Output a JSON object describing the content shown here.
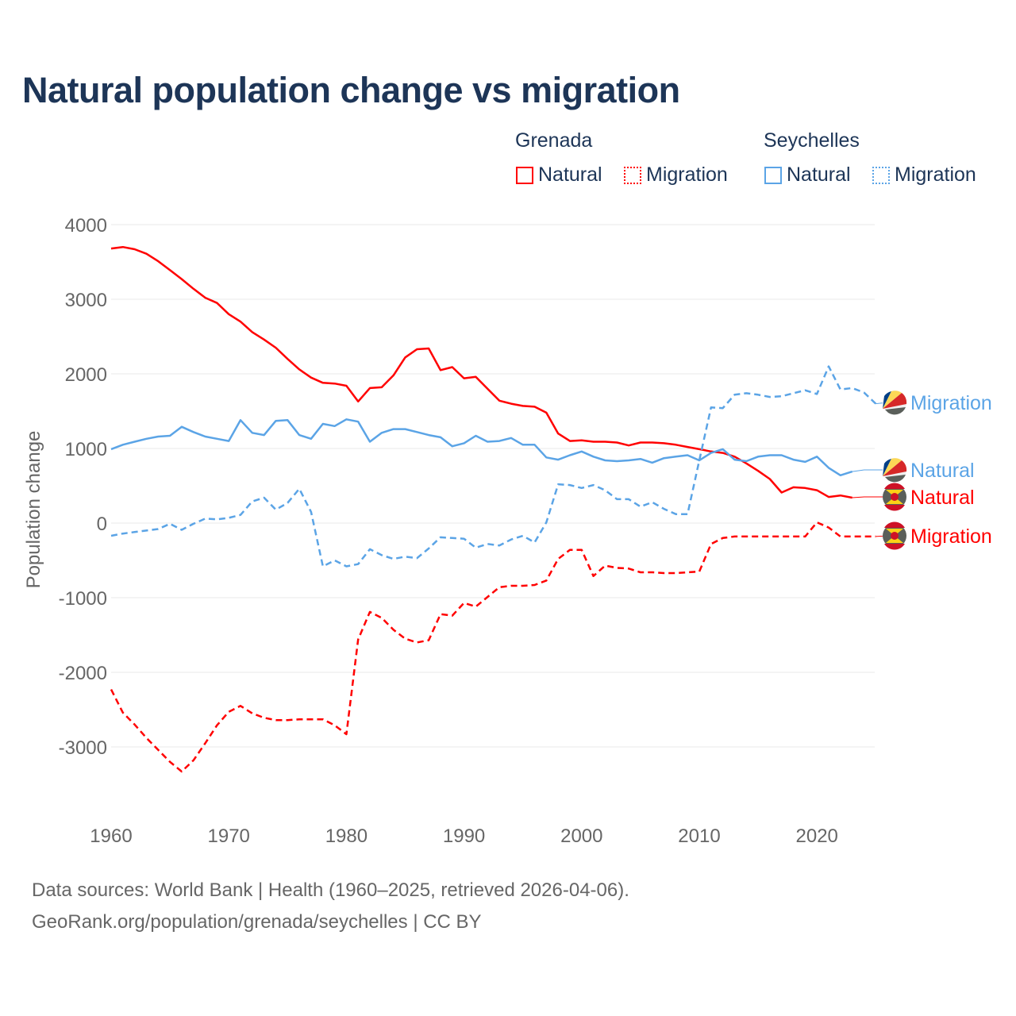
{
  "title": "Natural population change vs migration",
  "legend": {
    "groups": [
      {
        "name": "Grenada",
        "items": [
          {
            "label": "Natural",
            "style": "solid"
          },
          {
            "label": "Migration",
            "style": "dotted"
          }
        ],
        "color": "#ff0000"
      },
      {
        "name": "Seychelles",
        "items": [
          {
            "label": "Natural",
            "style": "solid"
          },
          {
            "label": "Migration",
            "style": "dotted"
          }
        ],
        "color": "#5ba4e6"
      }
    ]
  },
  "footer": {
    "line1": "Data sources: World Bank | Health (1960–2025, retrieved 2026-04-06).",
    "line2": "GeoRank.org/population/grenada/seychelles | CC BY"
  },
  "chart_data": {
    "type": "line",
    "title": "Natural population change vs migration",
    "xlabel": "",
    "ylabel": "Population change",
    "xlim": [
      1960,
      2025
    ],
    "ylim": [
      -4000,
      4000
    ],
    "xticks": [
      1960,
      1970,
      1980,
      1990,
      2000,
      2010,
      2020
    ],
    "yticks": [
      4000,
      3000,
      2000,
      1000,
      0,
      -1000,
      -2000,
      -3000
    ],
    "grid": true,
    "legend_position": "top-right",
    "x_start": 1960,
    "series": [
      {
        "name": "Grenada Natural",
        "end_label": "Natural",
        "color": "#ff0000",
        "dash": "solid",
        "values": [
          3680,
          3700,
          3670,
          3610,
          3510,
          3390,
          3270,
          3140,
          3020,
          2950,
          2800,
          2700,
          2560,
          2460,
          2350,
          2200,
          2060,
          1950,
          1880,
          1870,
          1840,
          1630,
          1810,
          1820,
          1980,
          2220,
          2330,
          2340,
          2050,
          2090,
          1940,
          1960,
          1800,
          1640,
          1600,
          1570,
          1560,
          1480,
          1200,
          1100,
          1110,
          1090,
          1090,
          1080,
          1040,
          1080,
          1080,
          1070,
          1050,
          1020,
          990,
          960,
          940,
          890,
          800,
          700,
          590,
          410,
          480,
          470,
          440,
          350,
          370,
          340
        ]
      },
      {
        "name": "Grenada Migration",
        "end_label": "Migration",
        "color": "#ff0000",
        "dash": "dashed",
        "values": [
          -2230,
          -2540,
          -2700,
          -2880,
          -3040,
          -3200,
          -3330,
          -3180,
          -2950,
          -2710,
          -2530,
          -2450,
          -2550,
          -2610,
          -2640,
          -2640,
          -2630,
          -2630,
          -2630,
          -2710,
          -2830,
          -1560,
          -1190,
          -1270,
          -1430,
          -1550,
          -1600,
          -1570,
          -1220,
          -1240,
          -1070,
          -1120,
          -990,
          -860,
          -840,
          -840,
          -830,
          -770,
          -480,
          -360,
          -360,
          -710,
          -570,
          -600,
          -610,
          -660,
          -660,
          -670,
          -670,
          -660,
          -650,
          -280,
          -200,
          -180,
          -180,
          -180,
          -180,
          -180,
          -180,
          -180,
          10,
          -60,
          -180,
          -180,
          -180,
          -180
        ]
      },
      {
        "name": "Seychelles Natural",
        "end_label": "Natural",
        "color": "#5ba4e6",
        "dash": "solid",
        "values": [
          990,
          1050,
          1090,
          1130,
          1160,
          1170,
          1290,
          1220,
          1160,
          1130,
          1100,
          1380,
          1210,
          1180,
          1370,
          1380,
          1180,
          1130,
          1330,
          1300,
          1390,
          1360,
          1090,
          1210,
          1260,
          1260,
          1220,
          1180,
          1150,
          1030,
          1070,
          1170,
          1090,
          1100,
          1140,
          1050,
          1050,
          880,
          850,
          910,
          960,
          890,
          840,
          830,
          840,
          860,
          810,
          870,
          890,
          910,
          840,
          940,
          990,
          850,
          830,
          890,
          910,
          910,
          850,
          820,
          890,
          740,
          640,
          690
        ]
      },
      {
        "name": "Seychelles Migration",
        "end_label": "Migration",
        "color": "#5ba4e6",
        "dash": "dashed",
        "values": [
          -170,
          -140,
          -120,
          -100,
          -80,
          -10,
          -90,
          -10,
          60,
          50,
          70,
          110,
          290,
          340,
          180,
          270,
          460,
          150,
          -580,
          -500,
          -580,
          -550,
          -350,
          -430,
          -480,
          -450,
          -470,
          -340,
          -190,
          -200,
          -210,
          -330,
          -280,
          -300,
          -220,
          -170,
          -260,
          10,
          520,
          510,
          470,
          510,
          440,
          320,
          320,
          220,
          280,
          190,
          120,
          120,
          840,
          1550,
          1540,
          1720,
          1740,
          1720,
          1690,
          1700,
          1740,
          1780,
          1730,
          2100,
          1790,
          1810,
          1750,
          1600
        ]
      }
    ]
  }
}
